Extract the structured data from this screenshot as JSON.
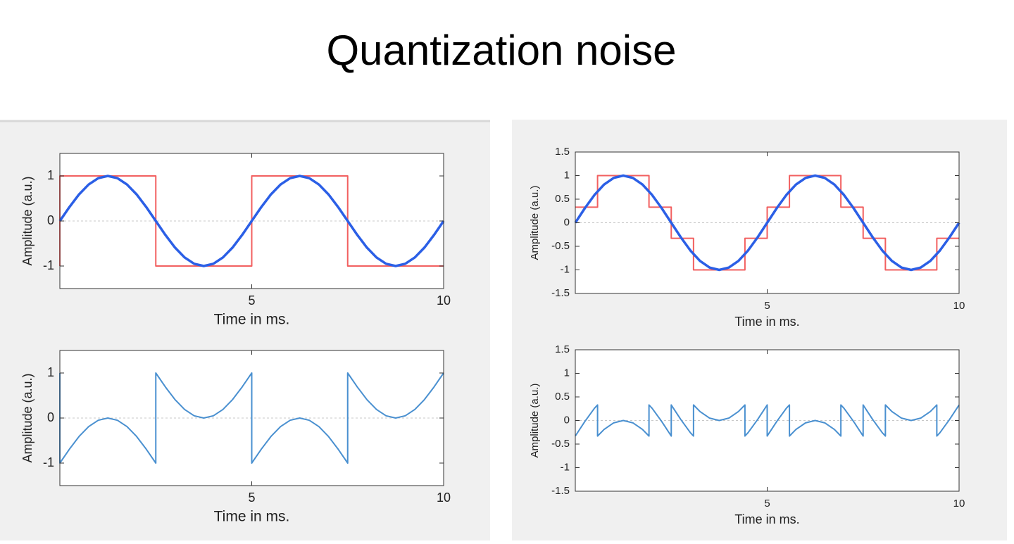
{
  "title": "Quantization noise",
  "chart_data": [
    {
      "type": "line",
      "xlabel": "Time in ms.",
      "ylabel": "Amplitude (a.u.)",
      "xlim": [
        0,
        10
      ],
      "ylim": [
        -1.5,
        1.5
      ],
      "xticks": [
        5,
        10
      ],
      "yticks": [
        -1,
        0,
        1
      ],
      "zero_line": true,
      "series": [
        {
          "color": "#f26060",
          "linewidth": 2,
          "x": [
            0,
            0,
            2.5,
            2.5,
            5,
            5,
            7.5,
            7.5,
            10
          ],
          "values": [
            -1,
            1,
            1,
            -1,
            -1,
            1,
            1,
            -1,
            -1
          ]
        },
        {
          "color": "#2b5fe6",
          "linewidth": 3.5,
          "x": [
            0,
            0.25,
            0.5,
            0.75,
            1,
            1.25,
            1.5,
            1.75,
            2,
            2.25,
            2.5,
            2.75,
            3,
            3.25,
            3.5,
            3.75,
            4,
            4.25,
            4.5,
            4.75,
            5,
            5.25,
            5.5,
            5.75,
            6,
            6.25,
            6.5,
            6.75,
            7,
            7.25,
            7.5,
            7.75,
            8,
            8.25,
            8.5,
            8.75,
            9,
            9.25,
            9.5,
            9.75,
            10
          ],
          "values": [
            0,
            0.31,
            0.59,
            0.81,
            0.95,
            1,
            0.95,
            0.81,
            0.59,
            0.31,
            0,
            -0.31,
            -0.59,
            -0.81,
            -0.95,
            -1,
            -0.95,
            -0.81,
            -0.59,
            -0.31,
            0,
            0.31,
            0.59,
            0.81,
            0.95,
            1,
            0.95,
            0.81,
            0.59,
            0.31,
            0,
            -0.31,
            -0.59,
            -0.81,
            -0.95,
            -1,
            -0.95,
            -0.81,
            -0.59,
            -0.31,
            0
          ]
        }
      ]
    },
    {
      "type": "line",
      "xlabel": "Time in ms.",
      "ylabel": "Amplitude (a.u.)",
      "xlim": [
        0,
        10
      ],
      "ylim": [
        -1.5,
        1.5
      ],
      "xticks": [
        5,
        10
      ],
      "yticks": [
        -1,
        0,
        1
      ],
      "zero_line": true,
      "series": [
        {
          "color": "#4a90d0",
          "linewidth": 2,
          "x": [
            0,
            0,
            0.25,
            0.5,
            0.75,
            1,
            1.25,
            1.5,
            1.75,
            2,
            2.25,
            2.5,
            2.5,
            2.75,
            3,
            3.25,
            3.5,
            3.75,
            4,
            4.25,
            4.5,
            4.75,
            5,
            5,
            5.25,
            5.5,
            5.75,
            6,
            6.25,
            6.5,
            6.75,
            7,
            7.25,
            7.5,
            7.5,
            7.75,
            8,
            8.25,
            8.5,
            8.75,
            9,
            9.25,
            9.5,
            9.75,
            10
          ],
          "values": [
            1,
            -1,
            -0.69,
            -0.41,
            -0.19,
            -0.05,
            0,
            -0.05,
            -0.19,
            -0.41,
            -0.69,
            -1,
            1,
            0.69,
            0.41,
            0.19,
            0.05,
            0,
            0.05,
            0.19,
            0.41,
            0.69,
            1,
            -1,
            -0.69,
            -0.41,
            -0.19,
            -0.05,
            0,
            -0.05,
            -0.19,
            -0.41,
            -0.69,
            -1,
            1,
            0.69,
            0.41,
            0.19,
            0.05,
            0,
            0.05,
            0.19,
            0.41,
            0.69,
            1
          ]
        }
      ]
    },
    {
      "type": "line",
      "xlabel": "Time in ms.",
      "ylabel": "Amplitude (a.u.)",
      "xlim": [
        0,
        10
      ],
      "ylim": [
        -1.5,
        1.5
      ],
      "xticks": [
        5,
        10
      ],
      "yticks": [
        -1.5,
        -1,
        -0.5,
        0,
        0.5,
        1,
        1.5
      ],
      "zero_line": true,
      "series": [
        {
          "color": "#f26060",
          "linewidth": 2,
          "x": [
            0,
            0.58,
            0.58,
            1.92,
            1.92,
            2.5,
            2.5,
            3.08,
            3.08,
            4.42,
            4.42,
            5,
            5,
            5.58,
            5.58,
            6.92,
            6.92,
            7.5,
            7.5,
            8.08,
            8.08,
            9.42,
            9.42,
            10
          ],
          "values": [
            0.33,
            0.33,
            1,
            1,
            0.33,
            0.33,
            -0.33,
            -0.33,
            -1,
            -1,
            -0.33,
            -0.33,
            0.33,
            0.33,
            1,
            1,
            0.33,
            0.33,
            -0.33,
            -0.33,
            -1,
            -1,
            -0.33,
            -0.33
          ]
        },
        {
          "color": "#2b5fe6",
          "linewidth": 3.5,
          "x": [
            0,
            0.25,
            0.5,
            0.75,
            1,
            1.25,
            1.5,
            1.75,
            2,
            2.25,
            2.5,
            2.75,
            3,
            3.25,
            3.5,
            3.75,
            4,
            4.25,
            4.5,
            4.75,
            5,
            5.25,
            5.5,
            5.75,
            6,
            6.25,
            6.5,
            6.75,
            7,
            7.25,
            7.5,
            7.75,
            8,
            8.25,
            8.5,
            8.75,
            9,
            9.25,
            9.5,
            9.75,
            10
          ],
          "values": [
            0,
            0.31,
            0.59,
            0.81,
            0.95,
            1,
            0.95,
            0.81,
            0.59,
            0.31,
            0,
            -0.31,
            -0.59,
            -0.81,
            -0.95,
            -1,
            -0.95,
            -0.81,
            -0.59,
            -0.31,
            0,
            0.31,
            0.59,
            0.81,
            0.95,
            1,
            0.95,
            0.81,
            0.59,
            0.31,
            0,
            -0.31,
            -0.59,
            -0.81,
            -0.95,
            -1,
            -0.95,
            -0.81,
            -0.59,
            -0.31,
            0
          ]
        }
      ]
    },
    {
      "type": "line",
      "xlabel": "Time in ms.",
      "ylabel": "Amplitude (a.u.)",
      "xlim": [
        0,
        10
      ],
      "ylim": [
        -1.5,
        1.5
      ],
      "xticks": [
        5,
        10
      ],
      "yticks": [
        -1.5,
        -1,
        -0.5,
        0,
        0.5,
        1,
        1.5
      ],
      "zero_line": true,
      "series": [
        {
          "color": "#4a90d0",
          "linewidth": 2,
          "x": [
            0,
            0.25,
            0.5,
            0.58,
            0.58,
            0.75,
            1,
            1.25,
            1.5,
            1.75,
            1.92,
            1.92,
            2,
            2.25,
            2.5,
            2.5,
            2.75,
            3,
            3.08,
            3.08,
            3.25,
            3.5,
            3.75,
            4,
            4.25,
            4.42,
            4.42,
            4.5,
            4.75,
            5,
            5,
            5.25,
            5.5,
            5.58,
            5.58,
            5.75,
            6,
            6.25,
            6.5,
            6.75,
            6.92,
            6.92,
            7,
            7.25,
            7.5,
            7.5,
            7.75,
            8,
            8.08,
            8.08,
            8.25,
            8.5,
            8.75,
            9,
            9.25,
            9.42,
            9.42,
            9.5,
            9.75,
            10
          ],
          "values": [
            -0.33,
            -0.02,
            0.26,
            0.33,
            -0.33,
            -0.19,
            -0.05,
            0,
            -0.05,
            -0.19,
            -0.33,
            0.33,
            0.26,
            -0.02,
            -0.33,
            0.33,
            0.02,
            -0.26,
            -0.33,
            0.33,
            0.19,
            0.05,
            0,
            0.05,
            0.19,
            0.33,
            -0.33,
            -0.26,
            0.02,
            0.33,
            -0.33,
            -0.02,
            0.26,
            0.33,
            -0.33,
            -0.19,
            -0.05,
            0,
            -0.05,
            -0.19,
            -0.33,
            0.33,
            0.26,
            -0.02,
            -0.33,
            0.33,
            0.02,
            -0.26,
            -0.33,
            0.33,
            0.19,
            0.05,
            0,
            0.05,
            0.19,
            0.33,
            -0.33,
            -0.26,
            0.02,
            0.33
          ]
        }
      ]
    }
  ]
}
